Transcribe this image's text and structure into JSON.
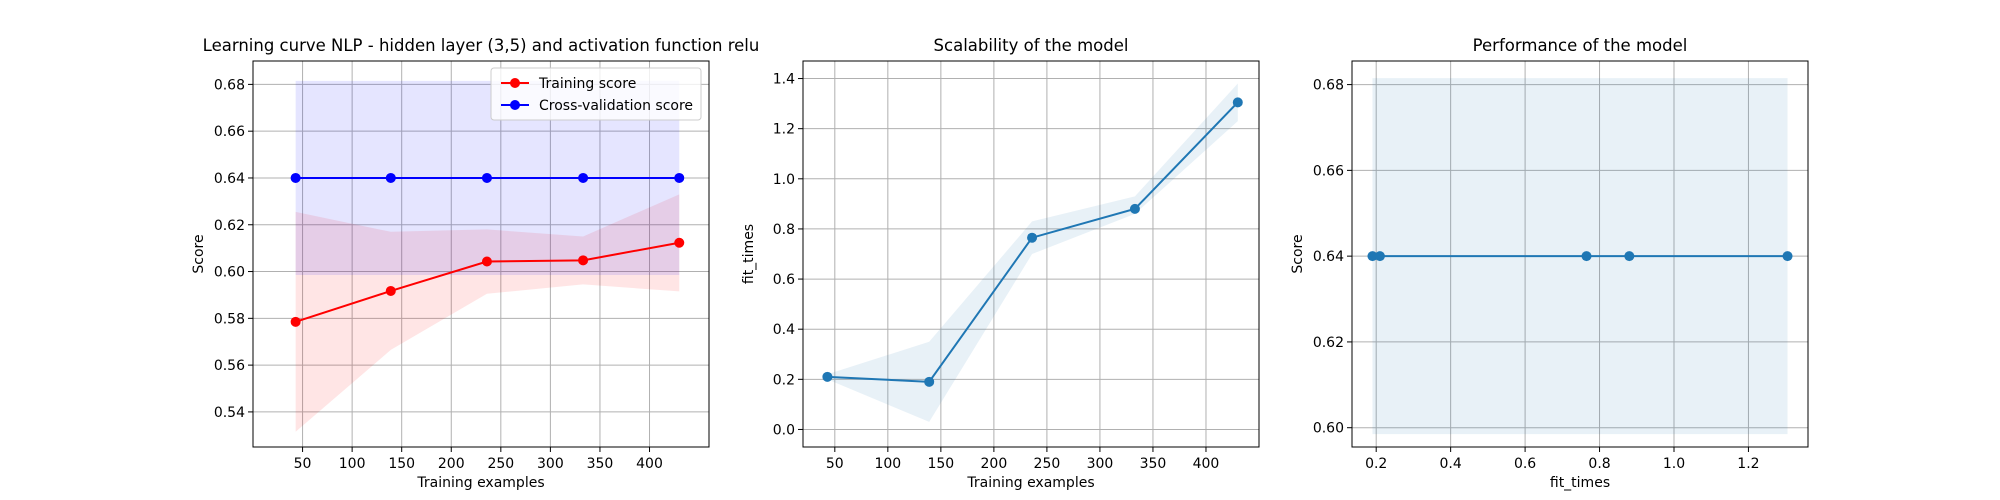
{
  "chart_data": [
    {
      "type": "line",
      "title": "Learning curve NLP - hidden layer (3,5) and activation function relu",
      "xlabel": "Training examples",
      "ylabel": "Score",
      "xlim": [
        0,
        460
      ],
      "ylim": [
        0.525,
        0.69
      ],
      "xticks": [
        50,
        100,
        150,
        200,
        250,
        300,
        350,
        400
      ],
      "yticks": [
        0.54,
        0.56,
        0.58,
        0.6,
        0.62,
        0.64,
        0.66,
        0.68
      ],
      "grid": true,
      "legend_position": "upper right",
      "x": [
        43,
        139,
        236,
        333,
        430
      ],
      "series": [
        {
          "name": "Training score",
          "color": "#ff0000",
          "values": [
            0.5785,
            0.5917,
            0.6043,
            0.6048,
            0.6123
          ],
          "band_lower": [
            0.5315,
            0.5665,
            0.5905,
            0.5945,
            0.5915
          ],
          "band_upper": [
            0.6255,
            0.617,
            0.618,
            0.615,
            0.633
          ]
        },
        {
          "name": "Cross-validation score",
          "color": "#0000ff",
          "values": [
            0.64,
            0.64,
            0.64,
            0.64,
            0.64
          ],
          "band_lower": [
            0.5985,
            0.5985,
            0.5985,
            0.5985,
            0.5985
          ],
          "band_upper": [
            0.6815,
            0.6815,
            0.6815,
            0.6815,
            0.6815
          ]
        }
      ]
    },
    {
      "type": "line",
      "title": "Scalability of the model",
      "xlabel": "Training examples",
      "ylabel": "fit_times",
      "xlim": [
        20,
        450
      ],
      "ylim": [
        -0.07,
        1.47
      ],
      "xticks": [
        50,
        100,
        150,
        200,
        250,
        300,
        350,
        400
      ],
      "yticks": [
        0.0,
        0.2,
        0.4,
        0.6,
        0.8,
        1.0,
        1.2,
        1.4
      ],
      "grid": true,
      "x": [
        43,
        139,
        236,
        333,
        430
      ],
      "series": [
        {
          "color": "#1f77b4",
          "values": [
            0.21,
            0.19,
            0.765,
            0.88,
            1.305
          ],
          "band_lower": [
            0.2,
            0.03,
            0.7,
            0.86,
            1.23
          ],
          "band_upper": [
            0.22,
            0.35,
            0.83,
            0.93,
            1.38
          ]
        }
      ]
    },
    {
      "type": "line",
      "title": "Performance of the model",
      "xlabel": "fit_times",
      "ylabel": "Score",
      "xlim": [
        0.135,
        1.36
      ],
      "ylim": [
        0.5955,
        0.6855
      ],
      "xticks": [
        0.2,
        0.4,
        0.6,
        0.8,
        1.0,
        1.2
      ],
      "yticks": [
        0.6,
        0.62,
        0.64,
        0.66,
        0.68
      ],
      "grid": true,
      "series": [
        {
          "color": "#1f77b4",
          "x": [
            0.19,
            0.21,
            0.765,
            0.88,
            1.305
          ],
          "values": [
            0.64,
            0.64,
            0.64,
            0.64,
            0.64
          ],
          "band_lower": [
            0.5985,
            0.5985,
            0.5985,
            0.5985,
            0.5985
          ],
          "band_upper": [
            0.6815,
            0.6815,
            0.6815,
            0.6815,
            0.6815
          ]
        }
      ]
    }
  ]
}
